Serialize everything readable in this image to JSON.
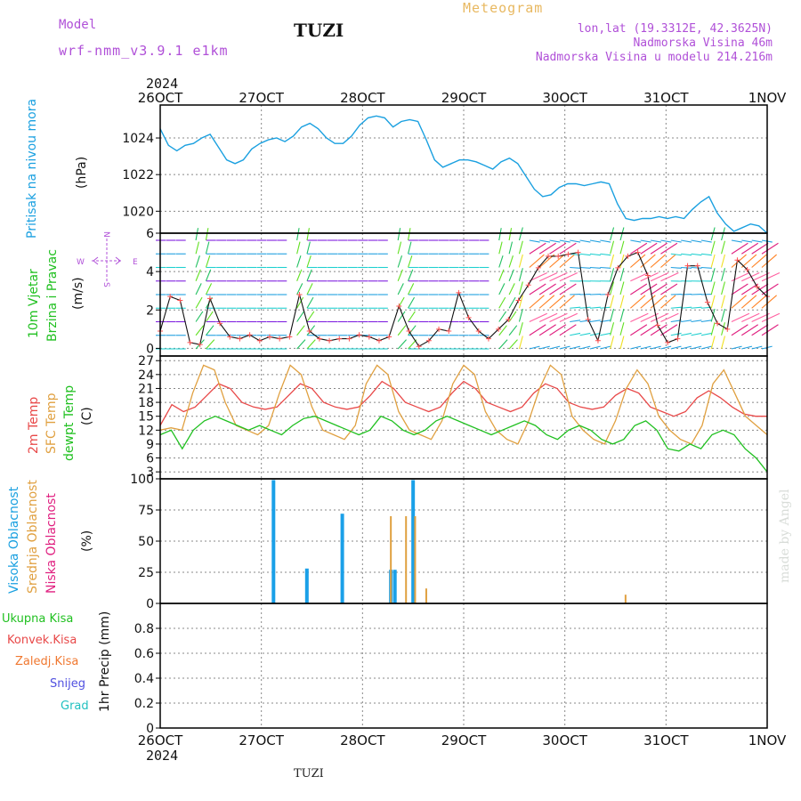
{
  "header": {
    "model_label": "Model",
    "model_name": "wrf-nmm_v3.9.1 e1km",
    "station": "TUZI",
    "meteogram": "Meteogram",
    "lonlat": "lon,lat (19.3312E, 42.3625N)",
    "altitude": "Nadmorska Visina 46m",
    "model_altitude": "Nadmorska Visina u modelu 214.216m",
    "year": "2024",
    "footer_station": "TUZI",
    "watermark": "made by Angel"
  },
  "colors": {
    "pressure": "#1aa0e0",
    "temp2m": "#e84848",
    "sfc": "#e0a040",
    "dewpt": "#20c020",
    "high_cloud": "#1aa0e8",
    "mid_cloud": "#e0a040",
    "low_cloud": "#e02080"
  },
  "axis_labels": {
    "pressure": {
      "name": "Pritisak na nivou mora",
      "unit": "(hPa)"
    },
    "wind": {
      "name1": "10m Vjetar",
      "name2": "Brzina i Pravac",
      "unit": "(m/s)",
      "compass_n": "N",
      "compass_s": "S",
      "compass_w": "W",
      "compass_e": "E"
    },
    "temp": {
      "name1": "2m Temp",
      "name2": "SFC Temp",
      "name3": "dewpt Temp",
      "unit": "(C)"
    },
    "cloud": {
      "name1": "Visoka Oblacnost",
      "name2": "Srednja Oblacnost",
      "name3": "Niska Oblacnost",
      "unit": "(%)"
    },
    "precip": {
      "label": "1hr Precip (mm)",
      "ukupna": "Ukupna Kisa",
      "konvek": "Konvek.Kisa",
      "zaledj": "Zaledj.Kisa",
      "snijeg": "Snijeg",
      "grad": "Grad"
    }
  },
  "chart_data": [
    {
      "type": "line",
      "panel": "pressure",
      "x_ticks": [
        "26OCT",
        "27OCT",
        "28OCT",
        "29OCT",
        "30OCT",
        "31OCT",
        "1NOV"
      ],
      "ylim": [
        1018.8,
        1025.8
      ],
      "y_ticks": [
        "1020",
        "1022",
        "1024"
      ],
      "grid": true,
      "series": [
        {
          "name": "Pritisak na nivou mora",
          "values": [
            1024.5,
            1023.6,
            1023.3,
            1023.6,
            1023.7,
            1024.0,
            1024.2,
            1023.5,
            1022.8,
            1022.6,
            1022.8,
            1023.4,
            1023.7,
            1023.9,
            1024.0,
            1023.8,
            1024.1,
            1024.6,
            1024.8,
            1024.5,
            1024.0,
            1023.7,
            1023.7,
            1024.1,
            1024.7,
            1025.1,
            1025.2,
            1025.1,
            1024.6,
            1024.9,
            1025.0,
            1024.9,
            1023.9,
            1022.8,
            1022.4,
            1022.6,
            1022.8,
            1022.8,
            1022.7,
            1022.5,
            1022.3,
            1022.7,
            1022.9,
            1022.6,
            1021.9,
            1021.2,
            1020.8,
            1020.9,
            1021.3,
            1021.5,
            1021.5,
            1021.4,
            1021.5,
            1021.6,
            1021.5,
            1020.4,
            1019.6,
            1019.5,
            1019.6,
            1019.6,
            1019.7,
            1019.6,
            1019.7,
            1019.6,
            1020.1,
            1020.5,
            1020.8,
            1019.9,
            1019.3,
            1018.9,
            1019.1,
            1019.3,
            1019.2,
            1018.8
          ]
        }
      ]
    },
    {
      "type": "line",
      "panel": "wind",
      "ylim": [
        -0.4,
        6
      ],
      "y_ticks": [
        "0",
        "2",
        "4",
        "6"
      ],
      "grid": true,
      "series": [
        {
          "name": "10m Vjetar",
          "values": [
            0.9,
            2.7,
            2.5,
            0.3,
            0.2,
            2.6,
            1.3,
            0.6,
            0.5,
            0.7,
            0.4,
            0.6,
            0.5,
            0.6,
            2.8,
            0.9,
            0.5,
            0.4,
            0.5,
            0.5,
            0.7,
            0.6,
            0.4,
            0.6,
            2.2,
            0.9,
            0.1,
            0.4,
            1.0,
            0.9,
            2.9,
            1.6,
            0.9,
            0.5,
            1.0,
            1.5,
            2.5,
            3.3,
            4.2,
            4.8,
            4.8,
            4.9,
            5.0,
            1.5,
            0.4,
            2.8,
            4.2,
            4.8,
            5.0,
            3.8,
            1.2,
            0.3,
            0.5,
            4.3,
            4.3,
            2.4,
            1.3,
            1.0,
            4.6,
            4.1,
            3.2,
            2.7
          ]
        }
      ]
    },
    {
      "type": "line",
      "panel": "temperature",
      "ylim": [
        1.5,
        28
      ],
      "y_ticks": [
        "3",
        "6",
        "9",
        "12",
        "15",
        "18",
        "21",
        "24",
        "27"
      ],
      "grid": true,
      "series": [
        {
          "name": "2m Temp",
          "values": [
            13,
            17.5,
            16,
            17,
            19.5,
            22,
            21,
            18,
            17,
            16.5,
            17,
            19.5,
            22,
            21,
            18,
            17,
            16.5,
            17,
            19.5,
            22.5,
            21,
            18,
            17,
            16,
            17,
            20,
            22.5,
            21,
            18,
            17,
            16,
            17,
            20,
            22,
            21,
            18,
            17,
            16.5,
            17,
            19.5,
            21,
            20,
            17,
            16,
            15,
            16,
            19,
            20.5,
            19,
            17,
            15.5,
            15,
            15
          ]
        },
        {
          "name": "SFC Temp",
          "values": [
            12,
            12.5,
            12,
            20,
            26,
            25,
            18,
            13,
            12,
            11,
            13,
            20,
            26,
            24,
            17,
            12,
            11,
            10,
            13,
            22,
            26,
            24,
            16,
            12,
            11,
            10,
            14,
            22,
            26,
            24,
            16,
            12,
            10,
            9,
            14,
            21,
            26,
            24,
            15,
            12,
            10,
            9,
            14,
            21,
            25,
            22,
            15,
            12,
            10,
            9,
            13,
            22,
            25,
            20,
            15,
            13,
            11
          ]
        },
        {
          "name": "dewpt Temp",
          "values": [
            11,
            12,
            8,
            12,
            14,
            15,
            14,
            13,
            12,
            13,
            12,
            11,
            13,
            14.5,
            15,
            14,
            13,
            12,
            11,
            12,
            15,
            14,
            12,
            11,
            12,
            14,
            15,
            14,
            13,
            12,
            11,
            12,
            13,
            14,
            13,
            11,
            10,
            12,
            13,
            12,
            10,
            9,
            10,
            13,
            14,
            12,
            8,
            7.5,
            9,
            8,
            11,
            12,
            11,
            8,
            6,
            3
          ]
        }
      ]
    },
    {
      "type": "bar",
      "panel": "cloud",
      "ylim": [
        0,
        100
      ],
      "y_ticks": [
        "0",
        "25",
        "50",
        "75",
        "100"
      ],
      "grid": true,
      "series": [
        {
          "name": "Visoka Oblacnost",
          "x_day": [
            1.12,
            1.45,
            1.8,
            2.28,
            2.32,
            2.5
          ],
          "values": [
            99,
            28,
            72,
            27,
            27,
            99
          ]
        },
        {
          "name": "Srednja Oblacnost",
          "x_day": [
            2.28,
            2.43,
            2.52,
            2.63,
            4.6
          ],
          "values": [
            70,
            70,
            70,
            12,
            7
          ]
        },
        {
          "name": "Niska Oblacnost",
          "x_day": [],
          "values": []
        }
      ]
    },
    {
      "type": "bar",
      "panel": "precip",
      "ylim": [
        0,
        1
      ],
      "y_ticks": [
        "0",
        "0.2",
        "0.4",
        "0.6",
        "0.8"
      ],
      "x_ticks": [
        "26OCT",
        "27OCT",
        "28OCT",
        "29OCT",
        "30OCT",
        "31OCT",
        "1NOV"
      ],
      "grid": true,
      "series": [
        {
          "name": "Ukupna Kisa",
          "values": []
        }
      ]
    }
  ]
}
